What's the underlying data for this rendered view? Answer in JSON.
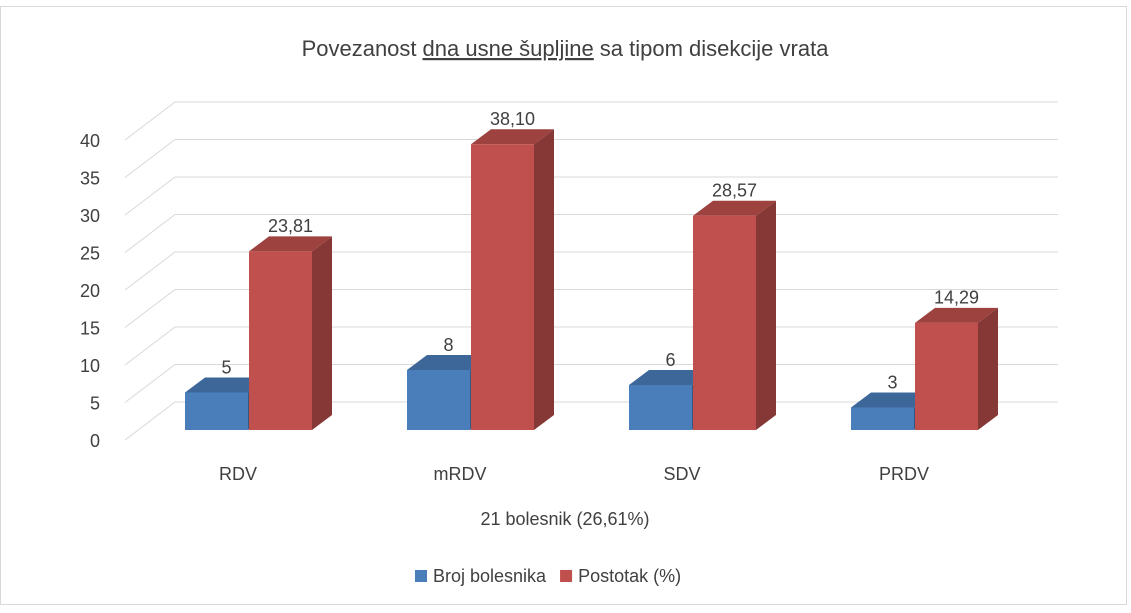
{
  "chart_data": {
    "type": "bar3d",
    "title": [
      "Povezanost",
      "dna usne šupljine",
      "sa tipom disekcije vrata"
    ],
    "x_label": "21 bolesnik (26,61%)",
    "categories": [
      "RDV",
      "mRDV",
      "SDV",
      "PRDV"
    ],
    "series": [
      {
        "name": "Broj bolesnika",
        "color": "#4a7ebb",
        "values": [
          5,
          8,
          6,
          3
        ]
      },
      {
        "name": "Postotak (%)",
        "color": "#c0504d",
        "values": [
          23.81,
          38.1,
          28.57,
          14.29
        ],
        "value_labels": [
          "23,81",
          "38,10",
          "28,57",
          "14,29"
        ]
      }
    ],
    "ylim": [
      0,
      40
    ],
    "yticks": [
      0,
      5,
      10,
      15,
      20,
      25,
      30,
      35,
      40
    ],
    "grid": true,
    "legend": "bottom"
  }
}
